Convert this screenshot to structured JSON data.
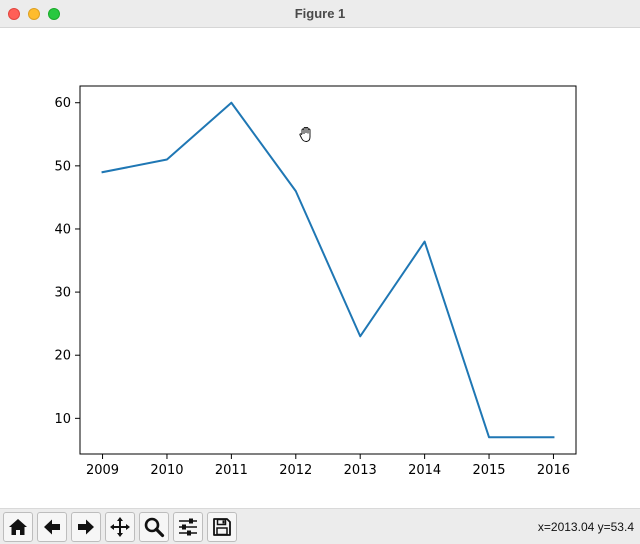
{
  "window": {
    "title": "Figure 1"
  },
  "toolbar": {
    "buttons": [
      {
        "name": "home",
        "icon": "home-icon"
      },
      {
        "name": "back",
        "icon": "arrow-left-icon"
      },
      {
        "name": "forward",
        "icon": "arrow-right-icon"
      },
      {
        "name": "pan",
        "icon": "move-icon"
      },
      {
        "name": "zoom",
        "icon": "magnifier-icon"
      },
      {
        "name": "configure",
        "icon": "sliders-icon"
      },
      {
        "name": "save",
        "icon": "floppy-disk-icon"
      }
    ],
    "coords_text": "x=2013.04 y=53.4"
  },
  "chart_data": {
    "type": "line",
    "x": [
      2009,
      2010,
      2011,
      2012,
      2013,
      2014,
      2015,
      2016
    ],
    "series": [
      {
        "values": [
          49,
          51,
          60,
          46,
          23,
          38,
          7,
          7
        ],
        "color": "#1f77b4"
      }
    ],
    "xticks": [
      "2009",
      "2010",
      "2011",
      "2012",
      "2013",
      "2014",
      "2015",
      "2016"
    ],
    "yticks": [
      "10",
      "20",
      "30",
      "40",
      "50",
      "60"
    ],
    "xlim": [
      2008.65,
      2016.35
    ],
    "ylim": [
      4.35,
      62.65
    ],
    "title": "",
    "xlabel": "",
    "ylabel": "",
    "grid": false,
    "legend": false
  }
}
